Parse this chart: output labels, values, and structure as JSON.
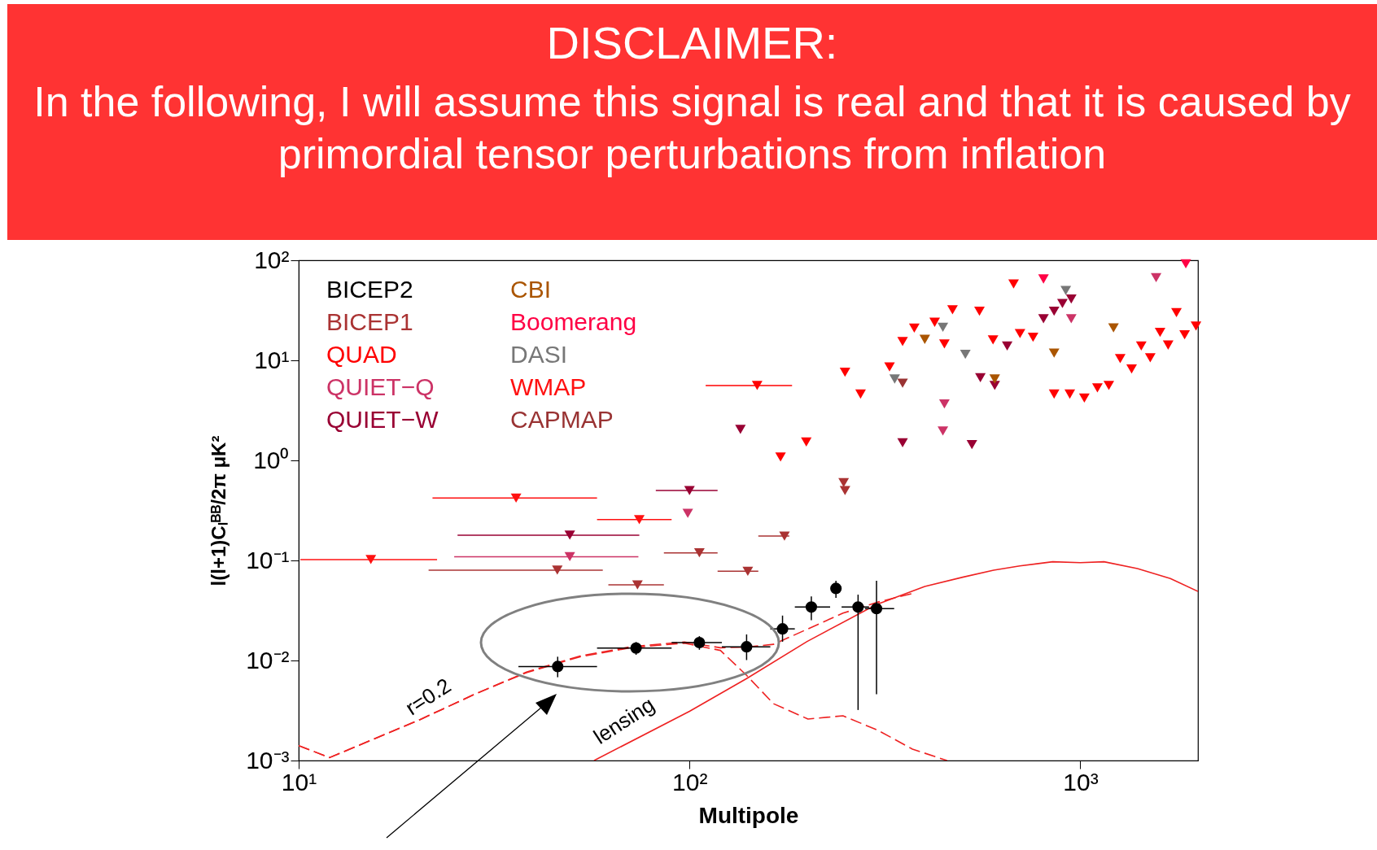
{
  "chart_data": {
    "type": "scatter",
    "xlabel": "Multipole",
    "ylabel": "l(l+1)Cₗᴮᴮ/2π μK²",
    "log": "xy",
    "grid": false,
    "legend": "top left",
    "xlim": [
      10,
      2000
    ],
    "ylim": [
      0.001,
      100
    ],
    "xticks": [
      {
        "value": 10,
        "label": "10¹"
      },
      {
        "value": 100,
        "label": "10²"
      },
      {
        "value": 1000,
        "label": "10³"
      }
    ],
    "yticks": [
      {
        "value": 0.001,
        "label": "10⁻³"
      },
      {
        "value": 0.01,
        "label": "10⁻²"
      },
      {
        "value": 0.1,
        "label": "10⁻¹"
      },
      {
        "value": 1,
        "label": "10⁰"
      },
      {
        "value": 10,
        "label": "10¹"
      },
      {
        "value": 100,
        "label": "10²"
      }
    ],
    "annotations": [
      "DISCLAIMER:",
      "In the following, I will assume this signal is real and that it is caused by primordial tensor perturbations from inflation",
      {
        "text": "r=0.2",
        "x": 23.5,
        "y": 0.0033
      },
      {
        "text": "lensing",
        "x": 74.5,
        "y": 0.0019
      }
    ],
    "series": [
      {
        "type": "line",
        "color": "#ee2222",
        "line_style": "dashed",
        "x": [
          10,
          12,
          20.6,
          28.2,
          38.4,
          52.5,
          71.4,
          97,
          120,
          140,
          164,
          201,
          247,
          304,
          372,
          456
        ],
        "values": [
          0.00141,
          0.00107,
          0.0026,
          0.0046,
          0.0076,
          0.0109,
          0.0135,
          0.0149,
          0.0126,
          0.0071,
          0.0037,
          0.0026,
          0.0028,
          0.002,
          0.0013,
          0.001
        ]
      },
      {
        "type": "line",
        "color": "#ee2222",
        "line_style": "dashed",
        "x": [
          10,
          12,
          20.6,
          28.2,
          38.4,
          52.5,
          71.4,
          97,
          120,
          140,
          164,
          201,
          247,
          304,
          372
        ],
        "values": [
          0.00141,
          0.00107,
          0.0026,
          0.0046,
          0.0077,
          0.0111,
          0.0138,
          0.0153,
          0.0134,
          0.0136,
          0.0145,
          0.0207,
          0.0297,
          0.0384,
          0.0468
        ]
      },
      {
        "type": "line",
        "color": "#ee2222",
        "line_style": "solid",
        "x": [
          57,
          100,
          140,
          200,
          300,
          400,
          500,
          600,
          700,
          850,
          1000,
          1150,
          1400,
          1700,
          2000
        ],
        "values": [
          0.001,
          0.0031,
          0.0066,
          0.0155,
          0.036,
          0.055,
          0.068,
          0.08,
          0.088,
          0.097,
          0.095,
          0.097,
          0.083,
          0.066,
          0.049
        ]
      },
      {
        "name": "BICEP2",
        "marker": "circle",
        "color": "#000000",
        "x": [
          46,
          73,
          106,
          140,
          173,
          205,
          237,
          270,
          301
        ],
        "values": [
          0.0087,
          0.0133,
          0.0151,
          0.0137,
          0.0207,
          0.0342,
          0.0525,
          0.0342,
          0.033
        ],
        "errors": [
          [
            0.0068,
            0.0109
          ],
          [
            0.0114,
            0.0153
          ],
          [
            0.0128,
            0.0175
          ],
          [
            0.0101,
            0.0182
          ],
          [
            0.0154,
            0.0281
          ],
          [
            0.0253,
            0.0437
          ],
          [
            0.0423,
            0.0625
          ],
          [
            0.0032,
            0.0455
          ],
          [
            0.0046,
            0.0625
          ]
        ],
        "xerrors": [
          [
            36.5,
            58
          ],
          [
            58,
            90
          ],
          [
            90,
            121
          ],
          [
            121,
            161
          ],
          [
            161,
            186
          ],
          [
            186,
            229
          ],
          null,
          [
            245,
            288
          ],
          [
            281,
            334
          ]
        ]
      },
      {
        "name": "BICEP1",
        "marker": "triangle",
        "color": "#aa3333",
        "x": [
          45.9,
          73.6,
          106,
          141,
          175,
          248,
          250
        ],
        "values": [
          0.08,
          0.057,
          0.119,
          0.078,
          0.175,
          0.6,
          0.5
        ],
        "xerrors": [
          [
            21.5,
            60
          ],
          [
            62,
            86
          ],
          [
            86,
            118
          ],
          [
            118,
            150
          ],
          [
            150,
            180
          ],
          null,
          null
        ]
      },
      {
        "name": "QUAD",
        "marker": "triangle",
        "color": "#ff0000",
        "x": [
          149,
          199,
          171,
          250,
          274,
          325,
          351,
          376,
          424,
          449,
          471,
          552,
          598,
          675,
          701,
          757,
          857,
          940,
          1024,
          1106,
          1183,
          1265,
          1353,
          1432,
          1510,
          1600,
          1678,
          1762,
          1849,
          1977
        ],
        "values": [
          5.6,
          1.53,
          1.08,
          7.6,
          4.6,
          8.6,
          15.4,
          21,
          24,
          14.6,
          32,
          31,
          16,
          58,
          18.5,
          17,
          4.6,
          4.6,
          4.2,
          5.3,
          5.6,
          10.4,
          8.2,
          13.9,
          10.6,
          19,
          14.2,
          30,
          18,
          22
        ],
        "xerrors": [
          [
            110,
            183
          ],
          null,
          null,
          null,
          null,
          null,
          null,
          null,
          null,
          null,
          null,
          null,
          null,
          null,
          null,
          null,
          null,
          null,
          null,
          null,
          null,
          null,
          null,
          null,
          null,
          null,
          null,
          null,
          null,
          null
        ]
      },
      {
        "name": "QUIET−Q",
        "marker": "triangle",
        "color": "#cc3366",
        "x": [
          49.4,
          99,
          445,
          449,
          948,
          1563
        ],
        "values": [
          0.109,
          0.296,
          1.97,
          3.66,
          26,
          67
        ],
        "xerrors": [
          [
            25,
            74
          ],
          null,
          null,
          null,
          null,
          null
        ]
      },
      {
        "name": "QUIET−W",
        "marker": "triangle",
        "color": "#990033",
        "x": [
          49.4,
          100,
          135,
          351,
          528,
          555,
          604,
          650,
          805,
          857,
          900,
          948
        ],
        "values": [
          0.179,
          0.5,
          2.04,
          1.5,
          1.44,
          6.7,
          5.6,
          13.9,
          26,
          31,
          37,
          41
        ],
        "xerrors": [
          [
            25.5,
            74.4
          ],
          [
            82,
            118
          ],
          null,
          null,
          null,
          null,
          null,
          null,
          null,
          null,
          null,
          null
        ]
      },
      {
        "name": "CBI",
        "marker": "triangle",
        "color": "#aa5500",
        "x": [
          400,
          604,
          857,
          1216
        ],
        "values": [
          16.2,
          6.5,
          11.8,
          21.1
        ]
      },
      {
        "name": "Boomerang",
        "marker": "triangle",
        "color": "#ff0044",
        "x": [
          805,
          1862
        ],
        "values": [
          65,
          92
        ]
      },
      {
        "name": "DASI",
        "marker": "triangle",
        "color": "#777777",
        "x": [
          335,
          445,
          508,
          918
        ],
        "values": [
          6.5,
          21.4,
          11.5,
          50
        ]
      },
      {
        "name": "WMAP",
        "marker": "triangle",
        "color": "#ff1111",
        "x": [
          15.3,
          36,
          74.4
        ],
        "values": [
          0.102,
          0.42,
          0.256
        ],
        "xerrors": [
          [
            10.1,
            22.6
          ],
          [
            22,
            58
          ],
          [
            58,
            90
          ]
        ]
      },
      {
        "name": "CAPMAP",
        "marker": "triangle",
        "color": "#993333",
        "x": [
          351
        ],
        "values": [
          5.9
        ]
      }
    ]
  }
}
